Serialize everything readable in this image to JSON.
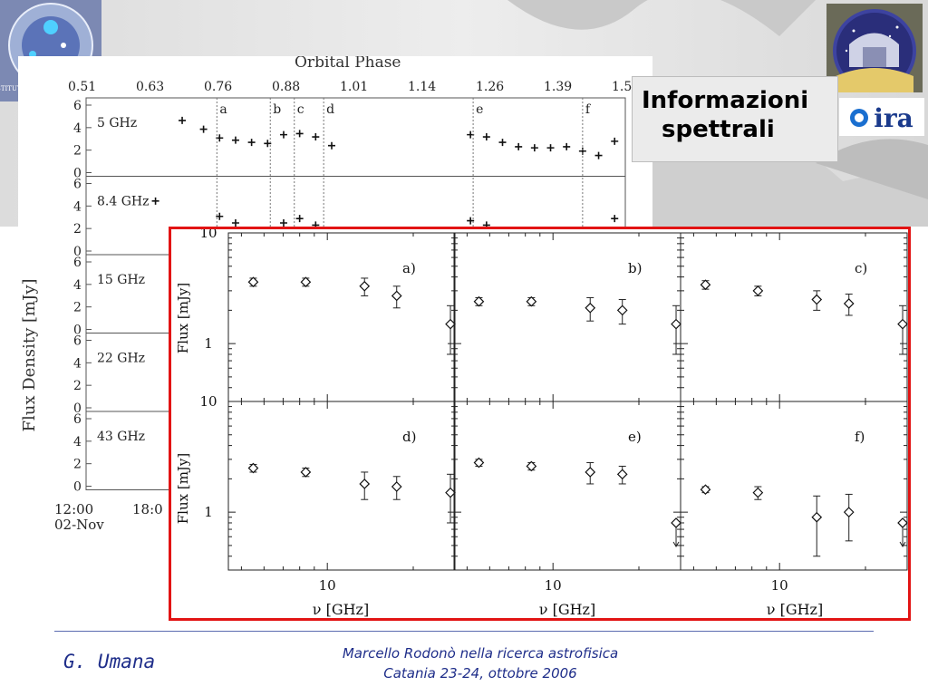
{
  "slide": {
    "info_box": {
      "line1": "Informazioni",
      "line2": "spettrali"
    },
    "footer": {
      "author": "G. Umana",
      "title_line1": "Marcello Rodonò nella ricerca astrofisica",
      "title_line2": "Catania  23-24, ottobre  2006"
    },
    "logos": {
      "left_logo_text": "ISTITUTO DI ASTROFISICA · INAF",
      "right_logo_text": "ira"
    },
    "colors": {
      "frame_red": "#e21414",
      "footer_blue": "#1f2e8a",
      "box_grey": "#ebebeb"
    }
  },
  "chart_data": [
    {
      "type": "scatter",
      "title": "Orbital Phase",
      "top_ticks": [
        "0.51",
        "0.63",
        "0.76",
        "0.88",
        "1.01",
        "1.14",
        "1.26",
        "1.39",
        "1.5"
      ],
      "ylabel": "Flux Density [mJy]",
      "bottom_ticks": [
        "12:00",
        "18:0"
      ],
      "bottom_date": "02-Nov",
      "markers": [
        "a",
        "b",
        "c",
        "d",
        "e",
        "f"
      ],
      "panels": [
        {
          "label": "5 GHz",
          "yticks": [
            "6",
            "4",
            "2",
            "0"
          ],
          "ylim": [
            0,
            6
          ],
          "points": [
            [
              0.69,
              4.6
            ],
            [
              0.73,
              3.8
            ],
            [
              0.76,
              3.0
            ],
            [
              0.79,
              2.8
            ],
            [
              0.82,
              2.6
            ],
            [
              0.85,
              2.5
            ],
            [
              0.88,
              3.3
            ],
            [
              0.91,
              3.4
            ],
            [
              0.94,
              3.1
            ],
            [
              0.97,
              2.3
            ],
            [
              1.23,
              3.3
            ],
            [
              1.26,
              3.1
            ],
            [
              1.29,
              2.6
            ],
            [
              1.32,
              2.2
            ],
            [
              1.35,
              2.1
            ],
            [
              1.38,
              2.1
            ],
            [
              1.41,
              2.2
            ],
            [
              1.44,
              1.8
            ],
            [
              1.47,
              1.4
            ],
            [
              1.5,
              2.7
            ]
          ]
        },
        {
          "label": "8.4 GHz",
          "yticks": [
            "6",
            "4",
            "2",
            "0"
          ],
          "ylim": [
            0,
            6
          ],
          "points": [
            [
              0.64,
              4.4
            ],
            [
              0.76,
              3.0
            ],
            [
              0.79,
              2.4
            ],
            [
              0.88,
              2.4
            ],
            [
              0.91,
              2.8
            ],
            [
              0.94,
              2.2
            ],
            [
              1.23,
              2.6
            ],
            [
              1.26,
              2.2
            ],
            [
              1.5,
              2.8
            ]
          ]
        },
        {
          "label": "15 GHz",
          "yticks": [
            "6",
            "4",
            "2",
            "0"
          ],
          "ylim": [
            0,
            6
          ],
          "points": []
        },
        {
          "label": "22 GHz",
          "yticks": [
            "6",
            "4",
            "2",
            "0"
          ],
          "ylim": [
            0,
            6
          ],
          "points": []
        },
        {
          "label": "43 GHz",
          "yticks": [
            "6",
            "4",
            "2",
            "0"
          ],
          "ylim": [
            0,
            6
          ],
          "points": []
        }
      ]
    },
    {
      "type": "scatter",
      "log_scale": {
        "x": true,
        "y": true
      },
      "xlabel": "ν [GHz]",
      "ylabel": "Flux [mJy]",
      "x_tick_label": "10",
      "y_tick_labels": [
        "10",
        "1"
      ],
      "xlim": [
        4.5,
        28
      ],
      "ylim": [
        0.3,
        10
      ],
      "panels": [
        {
          "label": "a)",
          "x": [
            5.5,
            8.4,
            13.5,
            17.5,
            27
          ],
          "y": [
            3.6,
            3.6,
            3.3,
            2.7,
            1.5
          ],
          "yerr": [
            [
              0.3,
              0.3
            ],
            [
              0.3,
              0.3
            ],
            [
              0.6,
              0.6
            ],
            [
              0.6,
              0.6
            ],
            [
              0.7,
              0.7
            ]
          ],
          "upper_limit": [
            false,
            false,
            false,
            false,
            false
          ]
        },
        {
          "label": "b)",
          "x": [
            5.5,
            8.4,
            13.5,
            17.5,
            27
          ],
          "y": [
            2.4,
            2.4,
            2.1,
            2.0,
            1.5
          ],
          "yerr": [
            [
              0.2,
              0.2
            ],
            [
              0.2,
              0.2
            ],
            [
              0.5,
              0.5
            ],
            [
              0.5,
              0.5
            ],
            [
              0.7,
              0.7
            ]
          ],
          "upper_limit": [
            false,
            false,
            false,
            false,
            false
          ]
        },
        {
          "label": "c)",
          "x": [
            5.5,
            8.4,
            13.5,
            17.5,
            27
          ],
          "y": [
            3.4,
            3.0,
            2.5,
            2.3,
            1.5
          ],
          "yerr": [
            [
              0.3,
              0.3
            ],
            [
              0.3,
              0.3
            ],
            [
              0.5,
              0.5
            ],
            [
              0.5,
              0.5
            ],
            [
              0.7,
              0.7
            ]
          ],
          "upper_limit": [
            false,
            false,
            false,
            false,
            false
          ]
        },
        {
          "label": "d)",
          "x": [
            5.5,
            8.4,
            13.5,
            17.5,
            27
          ],
          "y": [
            2.5,
            2.3,
            1.8,
            1.7,
            1.5
          ],
          "yerr": [
            [
              0.2,
              0.2
            ],
            [
              0.2,
              0.2
            ],
            [
              0.5,
              0.5
            ],
            [
              0.4,
              0.4
            ],
            [
              0.7,
              0.7
            ]
          ],
          "upper_limit": [
            false,
            false,
            false,
            false,
            false
          ]
        },
        {
          "label": "e)",
          "x": [
            5.5,
            8.4,
            13.5,
            17.5,
            27
          ],
          "y": [
            2.8,
            2.6,
            2.3,
            2.2,
            0.8
          ],
          "yerr": [
            [
              0.2,
              0.2
            ],
            [
              0.2,
              0.2
            ],
            [
              0.5,
              0.5
            ],
            [
              0.4,
              0.4
            ],
            [
              0,
              0
            ]
          ],
          "upper_limit": [
            false,
            false,
            false,
            false,
            true
          ]
        },
        {
          "label": "f)",
          "x": [
            5.5,
            8.4,
            13.5,
            17.5,
            27
          ],
          "y": [
            1.6,
            1.5,
            0.9,
            1.0,
            0.8
          ],
          "yerr": [
            [
              0.1,
              0.1
            ],
            [
              0.2,
              0.2
            ],
            [
              0.5,
              0.5
            ],
            [
              0.45,
              0.45
            ],
            [
              0,
              0
            ]
          ],
          "upper_limit": [
            false,
            false,
            false,
            false,
            true
          ]
        }
      ]
    }
  ]
}
